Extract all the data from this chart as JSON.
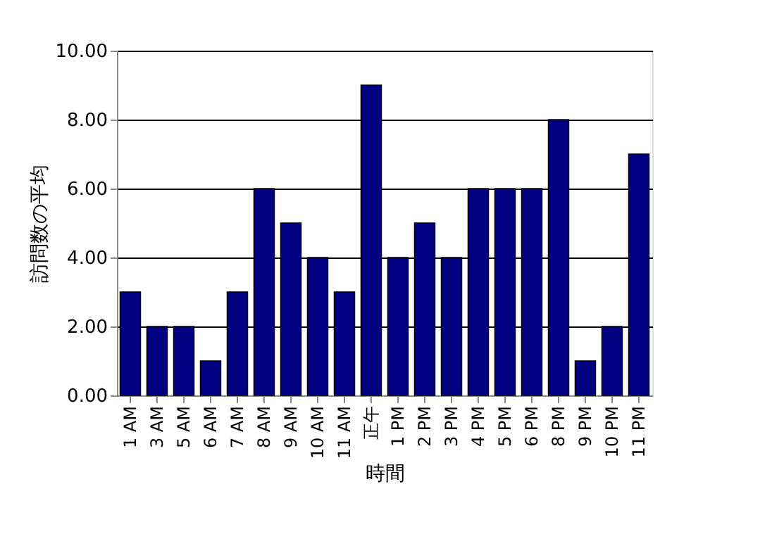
{
  "chart_data": {
    "type": "bar",
    "xlabel": "時間",
    "ylabel": "訪問数の平均",
    "categories": [
      "1 AM",
      "3 AM",
      "5 AM",
      "6 AM",
      "7 AM",
      "8 AM",
      "9 AM",
      "10 AM",
      "11 AM",
      "正午",
      "1 PM",
      "2 PM",
      "3 PM",
      "4 PM",
      "5 PM",
      "6 PM",
      "8 PM",
      "9 PM",
      "10 PM",
      "11 PM"
    ],
    "values": [
      3,
      2,
      2,
      1,
      3,
      6,
      5,
      4,
      3,
      9,
      4,
      5,
      4,
      6,
      6,
      6,
      8,
      1,
      2,
      7
    ],
    "color": "#000080",
    "ylim": [
      0,
      10
    ],
    "yticks": [
      {
        "value": 0,
        "label": "0.00"
      },
      {
        "value": 2,
        "label": "2.00"
      },
      {
        "value": 4,
        "label": "4.00"
      },
      {
        "value": 6,
        "label": "6.00"
      },
      {
        "value": 8,
        "label": "8.00"
      },
      {
        "value": 10,
        "label": "10.00"
      }
    ],
    "grid": "y"
  }
}
